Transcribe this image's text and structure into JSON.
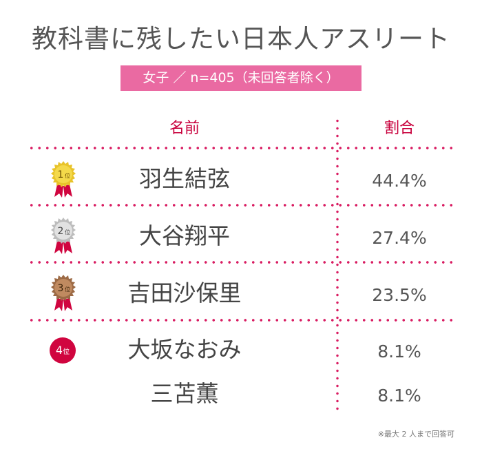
{
  "title": "教科書に残したい日本人アスリート",
  "subtitle": "女子 ／ n=405（未回答者除く）",
  "header": {
    "name": "名前",
    "share": "割合"
  },
  "rank_labels": [
    {
      "num": "1",
      "suffix": "位"
    },
    {
      "num": "2",
      "suffix": "位"
    },
    {
      "num": "3",
      "suffix": "位"
    },
    {
      "num": "4",
      "suffix": "位"
    }
  ],
  "rows": [
    {
      "name": "羽生結弦",
      "share": "44.4%"
    },
    {
      "name": "大谷翔平",
      "share": "27.4%"
    },
    {
      "name": "吉田沙保里",
      "share": "23.5%"
    },
    {
      "name": "大坂なおみ",
      "share": "8.1%"
    },
    {
      "name": "三苫薫",
      "share": "8.1%"
    }
  ],
  "note": "※最大 2 人まで回答可",
  "colors": {
    "accent": "#c8003c",
    "subtitle_bg": "#ea6aa2",
    "dots": "#d91e63",
    "gold": "#e8c32a",
    "silver": "#c9c9c9",
    "bronze": "#b07a55",
    "ribbon": "#d0053f"
  },
  "chart_data": {
    "type": "table",
    "title": "教科書に残したい日本人アスリート",
    "subtitle": "女子 ／ n=405（未回答者除く）",
    "columns": [
      "名前",
      "割合"
    ],
    "ranks": [
      "1位",
      "2位",
      "3位",
      "4位",
      "4位"
    ],
    "categories": [
      "羽生結弦",
      "大谷翔平",
      "吉田沙保里",
      "大坂なおみ",
      "三苫薫"
    ],
    "values": [
      44.4,
      27.4,
      23.5,
      8.1,
      8.1
    ],
    "unit": "%"
  }
}
